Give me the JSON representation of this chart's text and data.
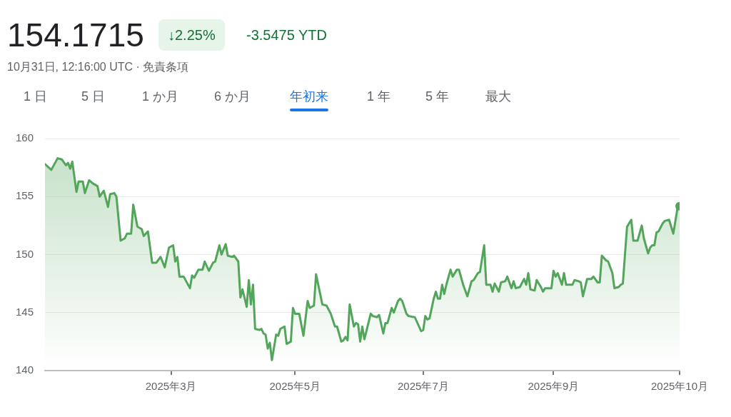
{
  "chart_data": {
    "type": "area",
    "title": "154.1715",
    "subtitle": "10月31日, 12:16:00 UTC · 免責条項",
    "annotations": [
      "↓2.25%",
      "-3.5475 YTD",
      "1 日",
      "5 日",
      "1 か月",
      "6 か月",
      "年初来",
      "1 年",
      "5 年",
      "最大"
    ],
    "x": [
      "2025-01-02",
      "2025-01-05",
      "2025-01-08",
      "2025-01-10",
      "2025-01-12",
      "2025-01-13",
      "2025-01-14",
      "2025-01-15",
      "2025-01-17",
      "2025-01-18",
      "2025-01-20",
      "2025-01-21",
      "2025-01-23",
      "2025-01-25",
      "2025-01-27",
      "2025-01-28",
      "2025-01-30",
      "2025-02-01",
      "2025-02-02",
      "2025-02-04",
      "2025-02-05",
      "2025-02-07",
      "2025-02-09",
      "2025-02-10",
      "2025-02-12",
      "2025-02-13",
      "2025-02-15",
      "2025-02-17",
      "2025-02-18",
      "2025-02-20",
      "2025-02-22",
      "2025-02-24",
      "2025-02-26",
      "2025-02-28",
      "2025-03-02",
      "2025-03-04",
      "2025-03-05",
      "2025-03-06",
      "2025-03-07",
      "2025-03-09",
      "2025-03-12",
      "2025-03-13",
      "2025-03-14",
      "2025-03-16",
      "2025-03-18",
      "2025-03-19",
      "2025-03-21",
      "2025-03-23",
      "2025-03-24",
      "2025-03-26",
      "2025-03-27",
      "2025-03-29",
      "2025-03-30",
      "2025-04-01",
      "2025-04-02",
      "2025-04-04",
      "2025-04-05",
      "2025-04-06",
      "2025-04-08",
      "2025-04-09",
      "2025-04-10",
      "2025-04-11",
      "2025-04-12",
      "2025-04-14",
      "2025-04-15",
      "2025-04-16",
      "2025-04-17",
      "2025-04-18",
      "2025-04-19",
      "2025-04-20",
      "2025-04-22",
      "2025-04-23",
      "2025-04-24",
      "2025-04-26",
      "2025-04-27",
      "2025-04-29",
      "2025-04-30",
      "2025-05-01",
      "2025-05-03",
      "2025-05-05",
      "2025-05-07",
      "2025-05-08",
      "2025-05-10",
      "2025-05-11",
      "2025-05-14",
      "2025-05-16",
      "2025-05-18",
      "2025-05-20",
      "2025-05-21",
      "2025-05-23",
      "2025-05-24",
      "2025-05-25",
      "2025-05-26",
      "2025-05-27",
      "2025-05-29",
      "2025-05-30",
      "2025-05-31",
      "2025-06-01",
      "2025-06-02",
      "2025-06-03",
      "2025-06-06",
      "2025-06-07",
      "2025-06-09",
      "2025-06-10",
      "2025-06-12",
      "2025-06-13",
      "2025-06-14",
      "2025-06-16",
      "2025-06-17",
      "2025-06-19",
      "2025-06-20",
      "2025-06-21",
      "2025-06-23",
      "2025-06-24",
      "2025-06-27",
      "2025-06-29",
      "2025-06-30",
      "2025-07-01",
      "2025-07-02",
      "2025-07-03",
      "2025-07-04",
      "2025-07-06",
      "2025-07-07",
      "2025-07-08",
      "2025-07-09",
      "2025-07-10",
      "2025-07-11",
      "2025-07-12",
      "2025-07-14",
      "2025-07-15",
      "2025-07-17",
      "2025-07-18",
      "2025-07-20",
      "2025-07-22",
      "2025-07-24",
      "2025-07-25",
      "2025-07-27",
      "2025-07-28",
      "2025-07-30",
      "2025-07-31",
      "2025-08-02",
      "2025-08-03",
      "2025-08-04",
      "2025-08-06",
      "2025-08-07",
      "2025-08-09",
      "2025-08-10",
      "2025-08-12",
      "2025-08-13",
      "2025-08-14",
      "2025-08-16",
      "2025-08-18",
      "2025-08-19",
      "2025-08-20",
      "2025-08-21",
      "2025-08-23",
      "2025-08-24",
      "2025-08-26",
      "2025-08-27",
      "2025-08-28",
      "2025-08-31",
      "2025-09-01",
      "2025-09-02",
      "2025-09-03",
      "2025-09-05",
      "2025-09-06",
      "2025-09-07",
      "2025-09-10",
      "2025-09-11",
      "2025-09-13",
      "2025-09-14",
      "2025-09-15",
      "2025-09-17",
      "2025-09-19",
      "2025-09-20",
      "2025-09-22",
      "2025-09-23",
      "2025-09-24",
      "2025-09-26",
      "2025-09-27",
      "2025-09-29",
      "2025-09-30",
      "2025-10-02",
      "2025-10-03",
      "2025-10-04",
      "2025-10-05",
      "2025-10-06",
      "2025-10-08",
      "2025-10-09",
      "2025-10-11",
      "2025-10-13",
      "2025-10-14",
      "2025-10-16",
      "2025-10-17",
      "2025-10-18",
      "2025-10-19",
      "2025-10-20",
      "2025-10-21",
      "2025-10-23",
      "2025-10-24",
      "2025-10-26",
      "2025-10-27",
      "2025-10-28",
      "2025-10-30",
      "2025-10-31"
    ],
    "series": [
      {
        "color": "#52a55a",
        "values": [
          157.8,
          157.3,
          158.3,
          158.2,
          157.7,
          157.9,
          157.4,
          158.0,
          155.4,
          156.3,
          156.3,
          155.3,
          156.4,
          156.1,
          155.9,
          155.0,
          155.5,
          154.1,
          155.2,
          155.3,
          155.0,
          151.2,
          151.4,
          151.8,
          151.8,
          154.3,
          152.4,
          152.2,
          151.6,
          152.0,
          149.3,
          149.3,
          149.8,
          148.9,
          150.6,
          150.8,
          149.4,
          149.8,
          148.1,
          148.1,
          147.1,
          148.2,
          148.0,
          148.7,
          148.7,
          149.4,
          148.6,
          149.3,
          149.4,
          150.8,
          150.0,
          150.9,
          149.9,
          149.8,
          149.9,
          149.4,
          146.3,
          147.0,
          145.5,
          147.8,
          145.7,
          147.4,
          143.6,
          143.5,
          143.6,
          143.2,
          143.1,
          141.9,
          142.4,
          140.9,
          143.1,
          143.0,
          143.6,
          143.8,
          142.3,
          142.5,
          145.4,
          144.9,
          144.9,
          143.0,
          146.0,
          145.4,
          145.6,
          148.3,
          145.7,
          145.6,
          144.9,
          143.8,
          143.8,
          142.5,
          142.6,
          142.9,
          142.6,
          145.7,
          143.8,
          144.1,
          144.0,
          142.5,
          143.8,
          142.7,
          144.9,
          144.7,
          144.6,
          144.8,
          143.2,
          144.1,
          144.1,
          145.4,
          145.0,
          146.0,
          146.2,
          146.0,
          144.9,
          144.7,
          144.6,
          143.8,
          143.4,
          143.5,
          144.7,
          144.4,
          144.5,
          146.2,
          146.8,
          146.2,
          146.2,
          147.4,
          146.6,
          147.4,
          148.7,
          148.1,
          148.7,
          148.7,
          147.4,
          146.4,
          147.7,
          147.8,
          148.4,
          148.5,
          150.8,
          147.4,
          147.4,
          146.8,
          147.5,
          146.8,
          147.6,
          147.7,
          148.1,
          147.1,
          147.7,
          147.1,
          147.2,
          147.9,
          147.4,
          148.4,
          147.0,
          146.9,
          147.8,
          147.2,
          146.8,
          147.1,
          147.1,
          148.6,
          148.1,
          148.4,
          147.4,
          148.4,
          147.4,
          147.4,
          147.8,
          147.7,
          147.6,
          146.4,
          147.9,
          147.9,
          148.1,
          147.6,
          147.6,
          149.9,
          149.5,
          149.4,
          148.4,
          147.1,
          147.2,
          147.4,
          147.5,
          150.0,
          152.4,
          153.0,
          151.2,
          151.2,
          152.5,
          151.4,
          150.1,
          150.6,
          150.8,
          150.8,
          151.9,
          152.0,
          152.7,
          152.9,
          153.0,
          152.4,
          151.8,
          154.0,
          154.17
        ]
      }
    ],
    "xlim": [
      "2025-01-02",
      "2025-10-31"
    ],
    "xticks": [
      {
        "value": "2025-03-03",
        "label": "2025年3月"
      },
      {
        "value": "2025-05-01",
        "label": "2025年5月"
      },
      {
        "value": "2025-07-01",
        "label": "2025年7月"
      },
      {
        "value": "2025-09-01",
        "label": "2025年9月"
      },
      {
        "value": "2025-10-31",
        "label": "2025年10月"
      }
    ],
    "ylim": [
      140,
      160
    ],
    "yticks": [
      140,
      145,
      150,
      155,
      160
    ],
    "grid": "y",
    "legend": false,
    "marker": "none",
    "line_style": "solid"
  }
}
